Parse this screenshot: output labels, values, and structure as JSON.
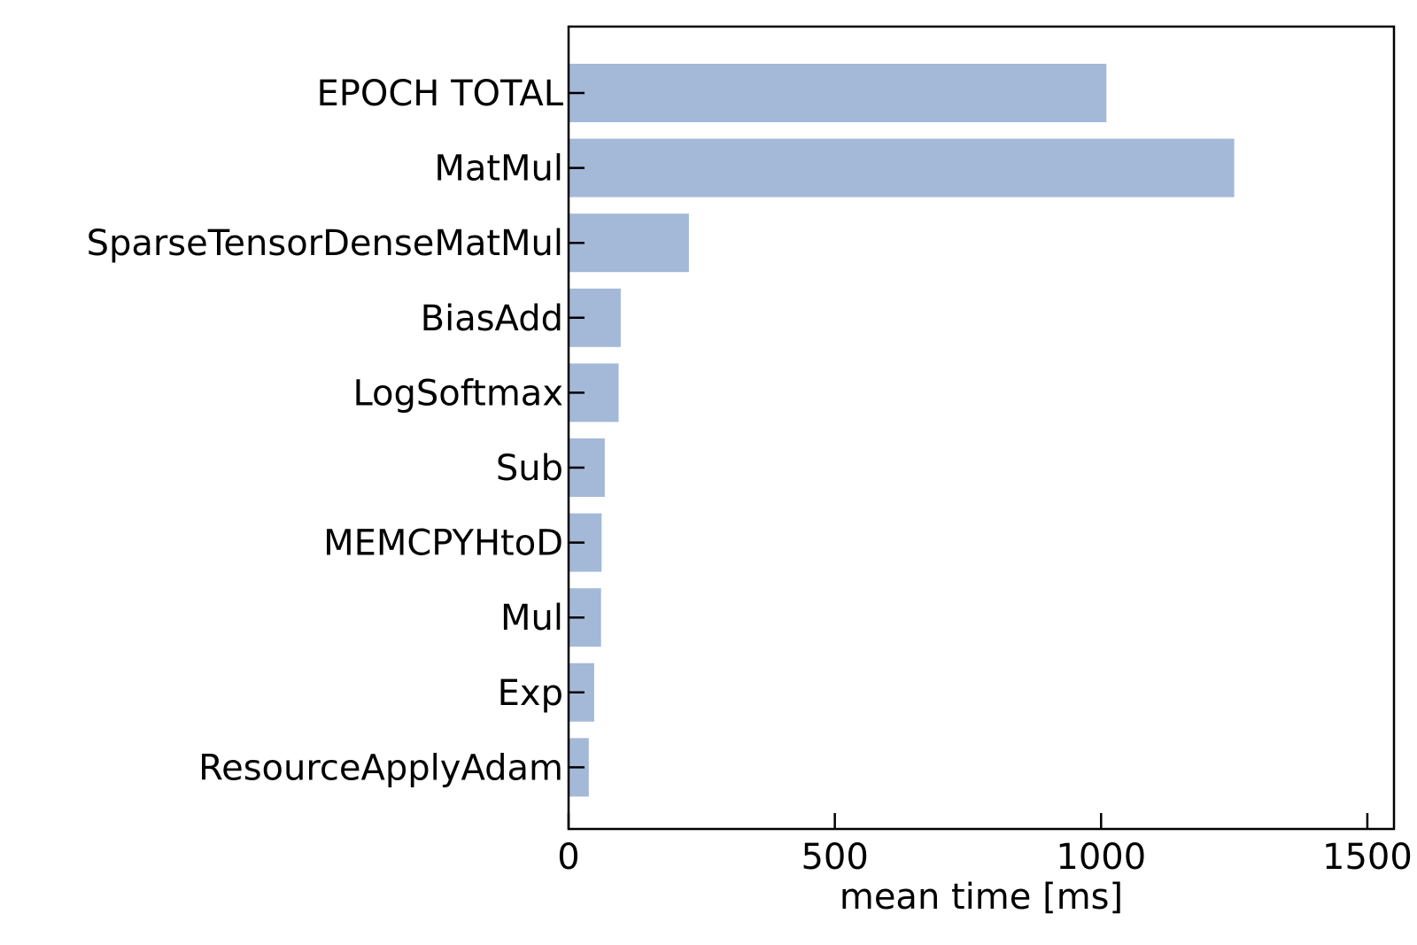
{
  "chart_data": {
    "type": "bar",
    "orientation": "horizontal",
    "categories": [
      "EPOCH TOTAL",
      "MatMul",
      "SparseTensorDenseMatMul",
      "BiasAdd",
      "LogSoftmax",
      "Sub",
      "MEMCPYHtoD",
      "Mul",
      "Exp",
      "ResourceApplyAdam"
    ],
    "values": [
      1010,
      1250,
      226,
      98,
      94,
      68,
      62,
      61,
      48,
      38
    ],
    "title": "",
    "xlabel": "mean time [ms]",
    "ylabel": "",
    "xlim": [
      0,
      1550
    ],
    "xticks": [
      0,
      500,
      1000,
      1500
    ],
    "xtick_labels": [
      "0",
      "500",
      "1000",
      "1500"
    ],
    "grid": false,
    "bar_color": "#a4b8d8",
    "axis_color": "#000000"
  }
}
